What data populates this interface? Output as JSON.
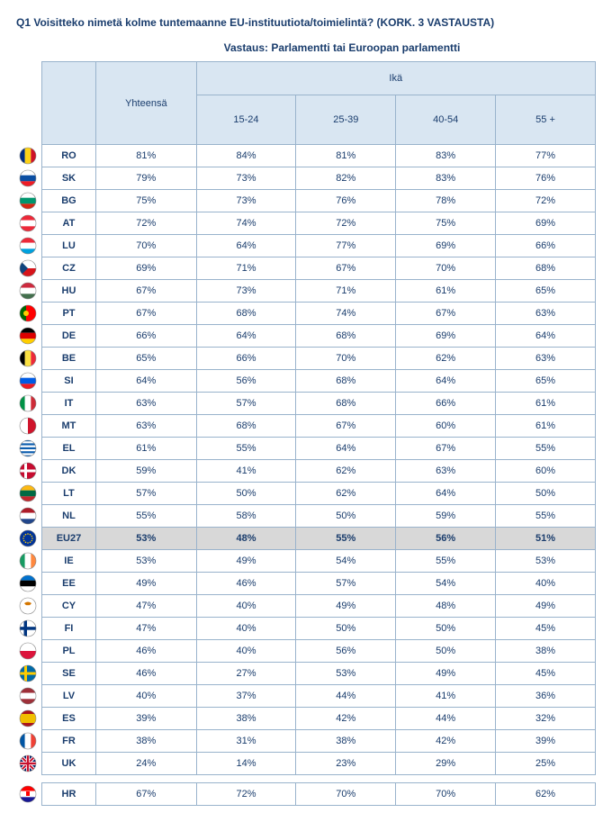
{
  "title": "Q1 Voisitteko nimetä kolme tuntemaanne EU-instituutiota/toimielintä? (KORK. 3 VASTAUSTA)",
  "subtitle": "Vastaus: Parlamentti tai Euroopan parlamentti",
  "header": {
    "total": "Yhteensä",
    "group": "Ikä",
    "cols": [
      "15-24",
      "25-39",
      "40-54",
      "55 +"
    ]
  },
  "rows": [
    {
      "code": "RO",
      "flag": "ro",
      "total": "81%",
      "v": [
        "84%",
        "81%",
        "83%",
        "77%"
      ]
    },
    {
      "code": "SK",
      "flag": "sk",
      "total": "79%",
      "v": [
        "73%",
        "82%",
        "83%",
        "76%"
      ]
    },
    {
      "code": "BG",
      "flag": "bg",
      "total": "75%",
      "v": [
        "73%",
        "76%",
        "78%",
        "72%"
      ]
    },
    {
      "code": "AT",
      "flag": "at",
      "total": "72%",
      "v": [
        "74%",
        "72%",
        "75%",
        "69%"
      ]
    },
    {
      "code": "LU",
      "flag": "lu",
      "total": "70%",
      "v": [
        "64%",
        "77%",
        "69%",
        "66%"
      ]
    },
    {
      "code": "CZ",
      "flag": "cz",
      "total": "69%",
      "v": [
        "71%",
        "67%",
        "70%",
        "68%"
      ]
    },
    {
      "code": "HU",
      "flag": "hu",
      "total": "67%",
      "v": [
        "73%",
        "71%",
        "61%",
        "65%"
      ]
    },
    {
      "code": "PT",
      "flag": "pt",
      "total": "67%",
      "v": [
        "68%",
        "74%",
        "67%",
        "63%"
      ]
    },
    {
      "code": "DE",
      "flag": "de",
      "total": "66%",
      "v": [
        "64%",
        "68%",
        "69%",
        "64%"
      ]
    },
    {
      "code": "BE",
      "flag": "be",
      "total": "65%",
      "v": [
        "66%",
        "70%",
        "62%",
        "63%"
      ]
    },
    {
      "code": "SI",
      "flag": "si",
      "total": "64%",
      "v": [
        "56%",
        "68%",
        "64%",
        "65%"
      ]
    },
    {
      "code": "IT",
      "flag": "it",
      "total": "63%",
      "v": [
        "57%",
        "68%",
        "66%",
        "61%"
      ]
    },
    {
      "code": "MT",
      "flag": "mt",
      "total": "63%",
      "v": [
        "68%",
        "67%",
        "60%",
        "61%"
      ]
    },
    {
      "code": "EL",
      "flag": "el",
      "total": "61%",
      "v": [
        "55%",
        "64%",
        "67%",
        "55%"
      ]
    },
    {
      "code": "DK",
      "flag": "dk",
      "total": "59%",
      "v": [
        "41%",
        "62%",
        "63%",
        "60%"
      ]
    },
    {
      "code": "LT",
      "flag": "lt",
      "total": "57%",
      "v": [
        "50%",
        "62%",
        "64%",
        "50%"
      ]
    },
    {
      "code": "NL",
      "flag": "nl",
      "total": "55%",
      "v": [
        "58%",
        "50%",
        "59%",
        "55%"
      ]
    },
    {
      "code": "EU27",
      "flag": "eu",
      "total": "53%",
      "v": [
        "48%",
        "55%",
        "56%",
        "51%"
      ],
      "eu": true
    },
    {
      "code": "IE",
      "flag": "ie",
      "total": "53%",
      "v": [
        "49%",
        "54%",
        "55%",
        "53%"
      ]
    },
    {
      "code": "EE",
      "flag": "ee",
      "total": "49%",
      "v": [
        "46%",
        "57%",
        "54%",
        "40%"
      ]
    },
    {
      "code": "CY",
      "flag": "cy",
      "total": "47%",
      "v": [
        "40%",
        "49%",
        "48%",
        "49%"
      ]
    },
    {
      "code": "FI",
      "flag": "fi",
      "total": "47%",
      "v": [
        "40%",
        "50%",
        "50%",
        "45%"
      ]
    },
    {
      "code": "PL",
      "flag": "pl",
      "total": "46%",
      "v": [
        "40%",
        "56%",
        "50%",
        "38%"
      ]
    },
    {
      "code": "SE",
      "flag": "se",
      "total": "46%",
      "v": [
        "27%",
        "53%",
        "49%",
        "45%"
      ]
    },
    {
      "code": "LV",
      "flag": "lv",
      "total": "40%",
      "v": [
        "37%",
        "44%",
        "41%",
        "36%"
      ]
    },
    {
      "code": "ES",
      "flag": "es",
      "total": "39%",
      "v": [
        "38%",
        "42%",
        "44%",
        "32%"
      ]
    },
    {
      "code": "FR",
      "flag": "fr",
      "total": "38%",
      "v": [
        "31%",
        "38%",
        "42%",
        "39%"
      ]
    },
    {
      "code": "UK",
      "flag": "uk",
      "total": "24%",
      "v": [
        "14%",
        "23%",
        "29%",
        "25%"
      ]
    }
  ],
  "extra_row": {
    "code": "HR",
    "flag": "hr",
    "total": "67%",
    "v": [
      "72%",
      "70%",
      "70%",
      "62%"
    ]
  },
  "colors": {
    "header_bg": "#d9e6f2",
    "border": "#99b3cc",
    "text": "#1a3d6d",
    "eu_bg": "#d8d8d8"
  }
}
